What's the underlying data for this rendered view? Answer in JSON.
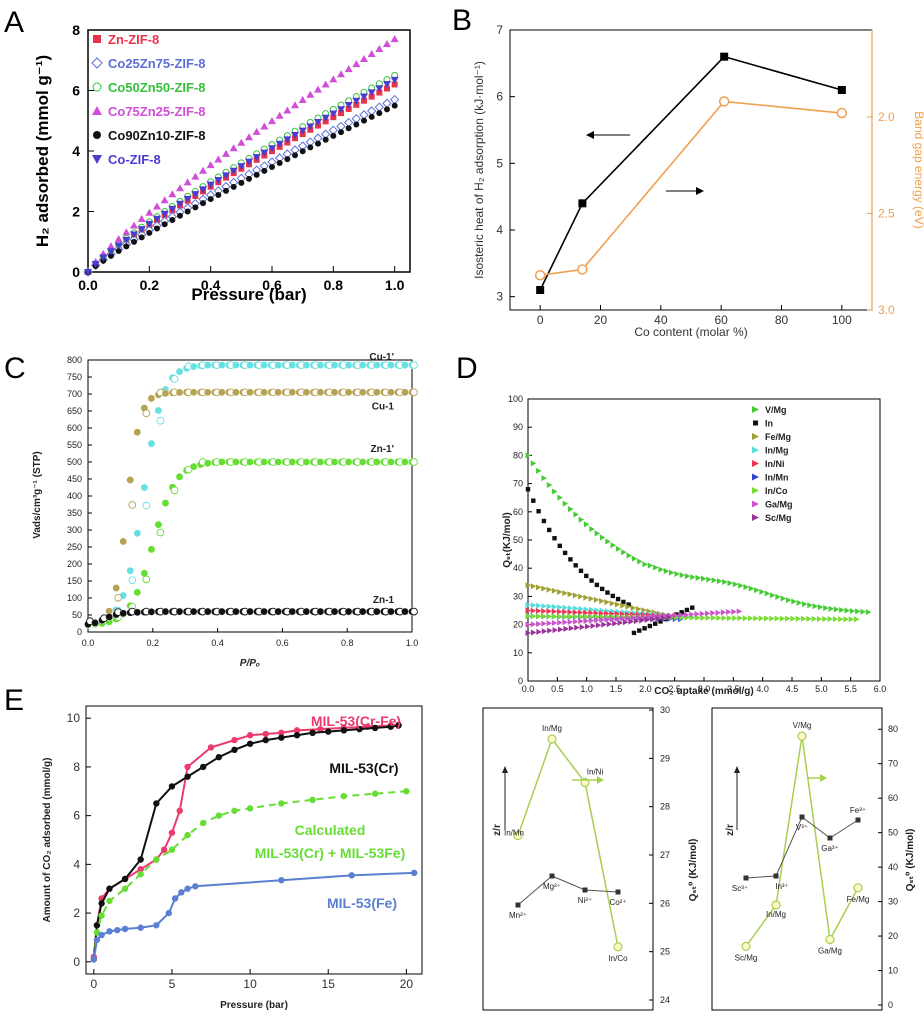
{
  "figure": {
    "panel_letters": [
      "A",
      "B",
      "C",
      "D",
      "E"
    ]
  },
  "chart_data": [
    {
      "panel": "A",
      "type": "scatter",
      "xlabel": "Pressure (bar)",
      "ylabel": "H₂ adsorbed (mmol g⁻¹)",
      "xlim": [
        0,
        1.05
      ],
      "ylim": [
        0,
        8
      ],
      "xticks": [
        "0.0",
        "0.2",
        "0.4",
        "0.6",
        "0.8",
        "1.0"
      ],
      "yticks": [
        "0",
        "2",
        "4",
        "6",
        "8"
      ],
      "legend_position": "top-left",
      "series": [
        {
          "name": "Zn-ZIF-8",
          "marker": "square",
          "color": "#e8334a",
          "ymax": 6.2,
          "curvature": 0.86
        },
        {
          "name": "Co25Zn75-ZIF-8",
          "marker": "diamond-open",
          "color": "#5b6fd6",
          "ymax": 5.7,
          "curvature": 0.88
        },
        {
          "name": "Co50Zn50-ZIF-8",
          "marker": "circle-open",
          "color": "#35c23a",
          "ymax": 6.5,
          "curvature": 0.85
        },
        {
          "name": "Co75Zn25-ZIF-8",
          "marker": "triangle-up",
          "color": "#d04ed8",
          "ymax": 7.7,
          "curvature": 0.85
        },
        {
          "name": "Co90Zn10-ZIF-8",
          "marker": "circle",
          "color": "#111111",
          "ymax": 5.5,
          "curvature": 0.9
        },
        {
          "name": "Co-ZIF-8",
          "marker": "triangle-down",
          "color": "#4a3bd1",
          "ymax": 6.35,
          "curvature": 0.86
        }
      ]
    },
    {
      "panel": "B",
      "type": "line",
      "xlabel": "Co content (molar %)",
      "ylabel": "Isosteric heat of H₂ adsorption (kJ·mol⁻¹)",
      "y2label": "Band gap energy (eV)",
      "xlim": [
        -10,
        110
      ],
      "ylim": [
        2.8,
        7
      ],
      "y2lim": [
        3.0,
        1.55
      ],
      "xticks": [
        "0",
        "20",
        "40",
        "60",
        "80",
        "100"
      ],
      "yticks": [
        "3",
        "4",
        "5",
        "6",
        "7"
      ],
      "y2ticks": [
        "2.0",
        "2.5",
        "3.0"
      ],
      "arrow_left_label": "",
      "series": [
        {
          "name": "",
          "axis": "left",
          "color": "#000000",
          "x": [
            0,
            14,
            61,
            100
          ],
          "y": [
            3.1,
            4.4,
            6.6,
            6.1
          ]
        },
        {
          "name": "",
          "axis": "right",
          "color": "#f0a050",
          "x": [
            0,
            14,
            61,
            100
          ],
          "y": [
            2.82,
            2.79,
            1.92,
            1.98
          ]
        }
      ]
    },
    {
      "panel": "C",
      "type": "scatter",
      "xlabel": "P/Pₒ",
      "ylabel": "Vads/cm³g⁻¹ (STP)",
      "xlim": [
        0,
        1.0
      ],
      "ylim": [
        0,
        800
      ],
      "xticks": [
        "0.0",
        "0.2",
        "0.4",
        "0.6",
        "0.8",
        "1.0"
      ],
      "yticks": [
        "0",
        "50",
        "100",
        "150",
        "200",
        "250",
        "300",
        "350",
        "400",
        "450",
        "500",
        "550",
        "600",
        "650",
        "700",
        "750",
        "800"
      ],
      "series": [
        {
          "name": "Cu-1'",
          "color": "#66e0e0",
          "plateau": 780,
          "label_y": 800
        },
        {
          "name": "Cu-1",
          "color": "#b5a252",
          "plateau": 700,
          "label_y": 655
        },
        {
          "name": "Zn-1'",
          "color": "#66dd33",
          "plateau": 495,
          "label_y": 530
        },
        {
          "name": "Zn-1",
          "color": "#111111",
          "plateau": 55,
          "label_y": 85
        }
      ]
    },
    {
      "panel": "D",
      "type": "scatter",
      "xlabel": "CO₂ uptake (mmol/g)",
      "ylabel": "Qₛₜ(KJ/mol)",
      "xlim": [
        0,
        6.0
      ],
      "ylim": [
        0,
        100
      ],
      "xticks": [
        "0.0",
        "0.5",
        "1.0",
        "1.5",
        "2.0",
        "2.5",
        "3.0",
        "3.5",
        "4.0",
        "4.5",
        "5.0",
        "5.5",
        "6.0"
      ],
      "yticks": [
        "0",
        "10",
        "20",
        "30",
        "40",
        "50",
        "60",
        "70",
        "80",
        "90",
        "100"
      ],
      "series": [
        {
          "name": "V/Mg",
          "color": "#44cc33"
        },
        {
          "name": "In",
          "color": "#111111"
        },
        {
          "name": "Fe/Mg",
          "color": "#a0a030"
        },
        {
          "name": "In/Mg",
          "color": "#55dddd"
        },
        {
          "name": "In/Ni",
          "color": "#ee3355"
        },
        {
          "name": "In/Mn",
          "color": "#3344cc"
        },
        {
          "name": "In/Co",
          "color": "#77dd33"
        },
        {
          "name": "Ga/Mg",
          "color": "#cc55cc"
        },
        {
          "name": "Sc/Mg",
          "color": "#993399"
        }
      ]
    },
    {
      "panel": "D-inset-left",
      "type": "line",
      "ylabel_left": "z/r",
      "ylabel_right": "Qₛₜ⁰ (KJ/mol)",
      "ylim_right": [
        24,
        30
      ],
      "yticks_right": [
        "24",
        "25",
        "26",
        "27",
        "28",
        "29",
        "30"
      ],
      "green_series": {
        "labels": [
          "In/Mn",
          "In/Mg",
          "In/Ni",
          "In/Co"
        ],
        "values": [
          27.4,
          29.4,
          28.5,
          25.1
        ]
      },
      "black_series": {
        "labels": [
          "Mn²⁺",
          "Mg²⁺",
          "Ni²⁺",
          "Co²⁺"
        ]
      }
    },
    {
      "panel": "D-inset-right",
      "type": "line",
      "ylabel_left": "z/r",
      "ylabel_right": "Qₛₜ⁰ (KJ/mol)",
      "ylim_right": [
        0,
        85
      ],
      "yticks_right": [
        "0",
        "10",
        "20",
        "30",
        "40",
        "50",
        "60",
        "70",
        "80"
      ],
      "green_series": {
        "labels": [
          "Sc/Mg",
          "In/Mg",
          "V/Mg",
          "Ga/Mg",
          "Fe/Mg"
        ],
        "values": [
          17,
          29,
          78,
          19,
          34
        ]
      },
      "black_series": {
        "labels": [
          "Sc³⁺",
          "In³⁺",
          "V³⁺",
          "Ga³⁺",
          "Fe³⁺"
        ]
      }
    },
    {
      "panel": "E",
      "type": "line",
      "xlabel": "Pressure (bar)",
      "ylabel": "Amount of CO₂ adsorbed (mmol/g)",
      "xlim": [
        -0.5,
        21
      ],
      "ylim": [
        -0.5,
        10.5
      ],
      "xticks": [
        "0",
        "5",
        "10",
        "15",
        "20"
      ],
      "yticks": [
        "0",
        "2",
        "4",
        "6",
        "8",
        "10"
      ],
      "series": [
        {
          "name": "MIL-53(Cr-Fe)",
          "color": "#ec3b6c",
          "x": [
            0,
            0.2,
            0.5,
            1,
            2,
            3,
            4,
            4.5,
            5,
            5.5,
            6,
            7.5,
            9,
            10,
            11,
            12,
            13,
            14.5,
            16,
            17.5,
            19,
            19.5
          ],
          "y": [
            0.2,
            1.5,
            2.6,
            3.0,
            3.4,
            3.8,
            4.2,
            4.6,
            5.3,
            6.2,
            8.0,
            8.8,
            9.1,
            9.3,
            9.35,
            9.4,
            9.5,
            9.55,
            9.6,
            9.65,
            9.7,
            9.72
          ]
        },
        {
          "name": "MIL-53(Cr)",
          "color": "#111111",
          "x": [
            0,
            0.2,
            0.5,
            1,
            2,
            3,
            4,
            5,
            6,
            7,
            8,
            9,
            10,
            11,
            12,
            13,
            14,
            15,
            16,
            17,
            18,
            19,
            19.5
          ],
          "y": [
            0.1,
            1.5,
            2.4,
            3.0,
            3.4,
            4.2,
            6.5,
            7.2,
            7.6,
            8.0,
            8.4,
            8.7,
            8.95,
            9.1,
            9.2,
            9.3,
            9.4,
            9.45,
            9.5,
            9.55,
            9.6,
            9.65,
            9.7
          ]
        },
        {
          "name": "Calculated MIL-53(Cr) + MIL-53Fe)",
          "color": "#66dd33",
          "dashed": true,
          "x": [
            0,
            0.2,
            0.5,
            1,
            2,
            3,
            4,
            5,
            6,
            7,
            8,
            9,
            10,
            12,
            14,
            16,
            18,
            20
          ],
          "y": [
            0.1,
            1.2,
            1.9,
            2.5,
            3.0,
            3.6,
            4.2,
            4.6,
            5.2,
            5.7,
            6.0,
            6.2,
            6.3,
            6.5,
            6.65,
            6.8,
            6.9,
            7.0
          ]
        },
        {
          "name": "MIL-53(Fe)",
          "color": "#5b7fd1",
          "x": [
            0,
            0.2,
            0.5,
            1,
            1.5,
            2,
            3,
            4,
            4.8,
            5.2,
            5.6,
            6,
            6.5,
            12,
            16.5,
            20.5
          ],
          "y": [
            0.1,
            0.9,
            1.1,
            1.25,
            1.3,
            1.35,
            1.4,
            1.5,
            2.0,
            2.6,
            2.85,
            3.0,
            3.1,
            3.35,
            3.55,
            3.65
          ]
        }
      ]
    }
  ]
}
